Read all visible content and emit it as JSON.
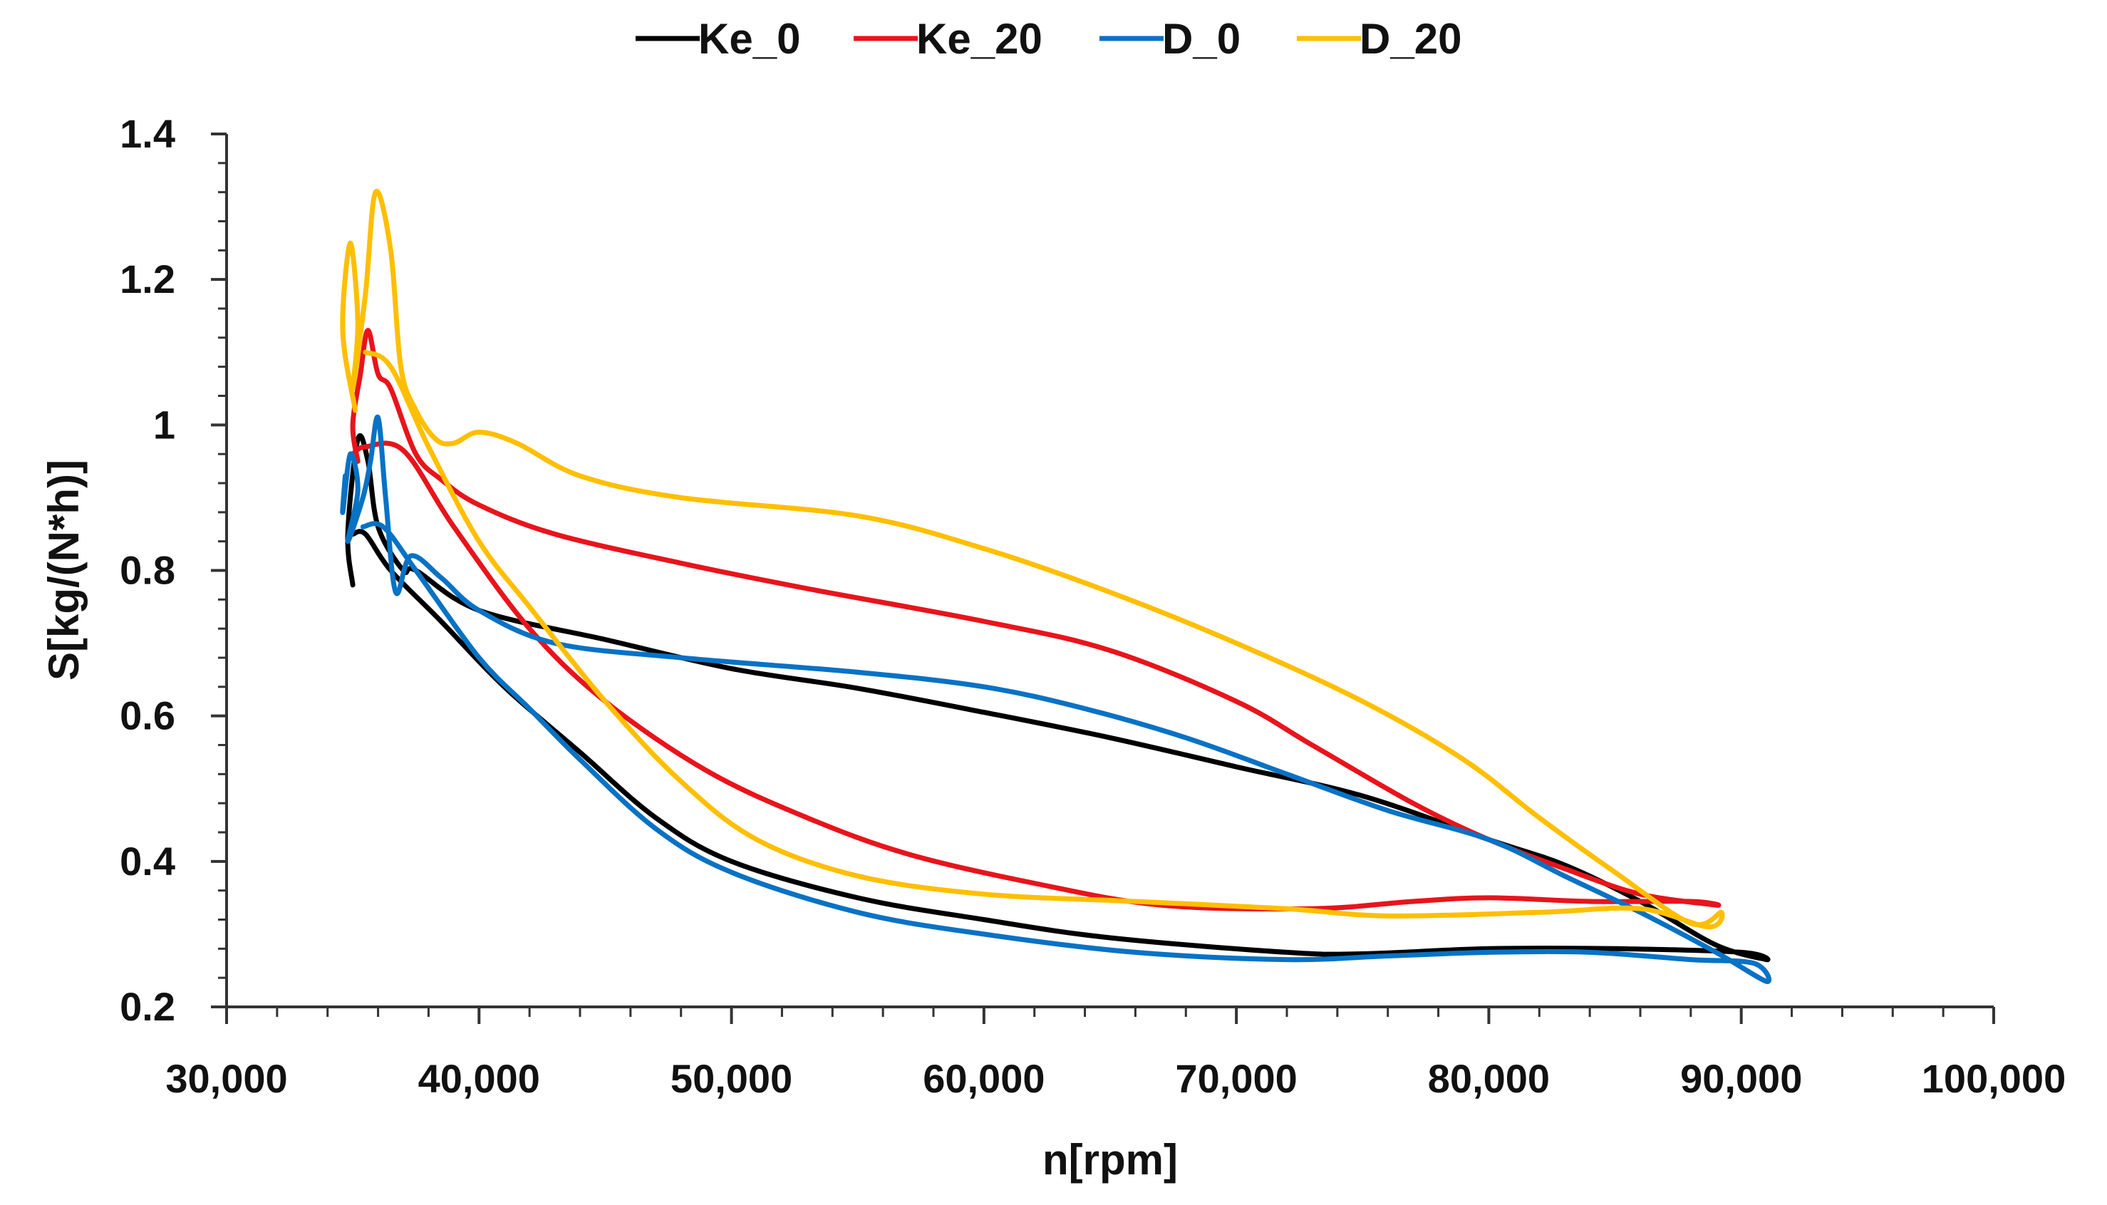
{
  "chart_data": {
    "type": "line",
    "title": "",
    "xlabel": "n[rpm]",
    "ylabel": "S[kg/(N*h)]",
    "xlim": [
      30000,
      100000
    ],
    "ylim": [
      0.2,
      1.4
    ],
    "xticks": [
      30000,
      40000,
      50000,
      60000,
      70000,
      80000,
      90000,
      100000
    ],
    "xtick_labels": [
      "30,000",
      "40,000",
      "50,000",
      "60,000",
      "70,000",
      "80,000",
      "90,000",
      "100,000"
    ],
    "yticks": [
      0.2,
      0.4,
      0.6,
      0.8,
      1.0,
      1.2,
      1.4
    ],
    "ytick_labels": [
      "0.2",
      "0.4",
      "0.6",
      "0.8",
      "1",
      "1.2",
      "1.4"
    ],
    "grid": false,
    "legend_position": "top-center",
    "series": [
      {
        "name": "Ke_0",
        "color": "#000000",
        "points": [
          [
            35000,
            0.78
          ],
          [
            34800,
            0.85
          ],
          [
            35200,
            0.98
          ],
          [
            35600,
            0.95
          ],
          [
            36000,
            0.86
          ],
          [
            37000,
            0.8
          ],
          [
            37500,
            0.8
          ],
          [
            40000,
            0.745
          ],
          [
            45000,
            0.705
          ],
          [
            50000,
            0.665
          ],
          [
            55000,
            0.638
          ],
          [
            60000,
            0.605
          ],
          [
            65000,
            0.57
          ],
          [
            70000,
            0.53
          ],
          [
            75000,
            0.49
          ],
          [
            80000,
            0.43
          ],
          [
            83000,
            0.395
          ],
          [
            86000,
            0.345
          ],
          [
            89000,
            0.285
          ],
          [
            91000,
            0.265
          ],
          [
            90000,
            0.275
          ],
          [
            85000,
            0.28
          ],
          [
            80000,
            0.28
          ],
          [
            75000,
            0.273
          ],
          [
            72000,
            0.275
          ],
          [
            65000,
            0.295
          ],
          [
            60000,
            0.32
          ],
          [
            55000,
            0.35
          ],
          [
            50000,
            0.4
          ],
          [
            47000,
            0.46
          ],
          [
            44000,
            0.55
          ],
          [
            41000,
            0.64
          ],
          [
            38500,
            0.73
          ],
          [
            36500,
            0.8
          ],
          [
            35500,
            0.85
          ],
          [
            35000,
            0.85
          ]
        ]
      },
      {
        "name": "Ke_20",
        "color": "#E8141C",
        "points": [
          [
            35200,
            0.95
          ],
          [
            35000,
            1.0
          ],
          [
            35300,
            1.07
          ],
          [
            35600,
            1.13
          ],
          [
            36000,
            1.07
          ],
          [
            36500,
            1.05
          ],
          [
            37500,
            0.96
          ],
          [
            38500,
            0.925
          ],
          [
            40000,
            0.89
          ],
          [
            43000,
            0.85
          ],
          [
            48000,
            0.81
          ],
          [
            53000,
            0.775
          ],
          [
            60000,
            0.73
          ],
          [
            65000,
            0.69
          ],
          [
            70000,
            0.62
          ],
          [
            73000,
            0.56
          ],
          [
            77000,
            0.48
          ],
          [
            80000,
            0.43
          ],
          [
            83000,
            0.39
          ],
          [
            86000,
            0.355
          ],
          [
            89000,
            0.34
          ],
          [
            88000,
            0.345
          ],
          [
            84000,
            0.345
          ],
          [
            80000,
            0.35
          ],
          [
            77000,
            0.345
          ],
          [
            73000,
            0.335
          ],
          [
            67000,
            0.34
          ],
          [
            62000,
            0.37
          ],
          [
            57000,
            0.41
          ],
          [
            53000,
            0.46
          ],
          [
            49000,
            0.525
          ],
          [
            45000,
            0.62
          ],
          [
            42000,
            0.72
          ],
          [
            39000,
            0.86
          ],
          [
            37000,
            0.965
          ],
          [
            35500,
            0.97
          ],
          [
            35000,
            0.96
          ]
        ]
      },
      {
        "name": "D_0",
        "color": "#0872C4",
        "points": [
          [
            34700,
            0.93
          ],
          [
            34600,
            0.88
          ],
          [
            34900,
            0.96
          ],
          [
            35200,
            0.91
          ],
          [
            34800,
            0.84
          ],
          [
            35400,
            0.9
          ],
          [
            35700,
            0.95
          ],
          [
            36000,
            1.01
          ],
          [
            36300,
            0.9
          ],
          [
            36700,
            0.77
          ],
          [
            37300,
            0.82
          ],
          [
            38500,
            0.79
          ],
          [
            40000,
            0.745
          ],
          [
            43000,
            0.7
          ],
          [
            48000,
            0.68
          ],
          [
            55000,
            0.66
          ],
          [
            60000,
            0.64
          ],
          [
            64000,
            0.61
          ],
          [
            68000,
            0.57
          ],
          [
            72000,
            0.52
          ],
          [
            76000,
            0.47
          ],
          [
            80000,
            0.43
          ],
          [
            83000,
            0.38
          ],
          [
            86000,
            0.33
          ],
          [
            89000,
            0.275
          ],
          [
            91000,
            0.235
          ],
          [
            90500,
            0.26
          ],
          [
            88000,
            0.265
          ],
          [
            84000,
            0.275
          ],
          [
            80000,
            0.275
          ],
          [
            76000,
            0.27
          ],
          [
            72000,
            0.265
          ],
          [
            66000,
            0.275
          ],
          [
            60000,
            0.3
          ],
          [
            55000,
            0.33
          ],
          [
            50000,
            0.385
          ],
          [
            47000,
            0.445
          ],
          [
            44000,
            0.54
          ],
          [
            42000,
            0.61
          ],
          [
            40000,
            0.68
          ],
          [
            37500,
            0.8
          ],
          [
            36200,
            0.86
          ],
          [
            35400,
            0.86
          ]
        ]
      },
      {
        "name": "D_20",
        "color": "#FFBF00",
        "points": [
          [
            35100,
            1.02
          ],
          [
            34600,
            1.13
          ],
          [
            34900,
            1.25
          ],
          [
            35200,
            1.14
          ],
          [
            35000,
            1.05
          ],
          [
            35500,
            1.18
          ],
          [
            35900,
            1.32
          ],
          [
            36500,
            1.24
          ],
          [
            36900,
            1.08
          ],
          [
            37500,
            1.02
          ],
          [
            38300,
            0.98
          ],
          [
            39000,
            0.975
          ],
          [
            40000,
            0.99
          ],
          [
            41500,
            0.975
          ],
          [
            44000,
            0.93
          ],
          [
            48000,
            0.9
          ],
          [
            55000,
            0.875
          ],
          [
            60000,
            0.83
          ],
          [
            65000,
            0.77
          ],
          [
            70000,
            0.7
          ],
          [
            75000,
            0.62
          ],
          [
            79000,
            0.54
          ],
          [
            82000,
            0.46
          ],
          [
            85000,
            0.385
          ],
          [
            88000,
            0.315
          ],
          [
            89200,
            0.33
          ],
          [
            88700,
            0.31
          ],
          [
            86000,
            0.335
          ],
          [
            82000,
            0.33
          ],
          [
            76000,
            0.325
          ],
          [
            72000,
            0.335
          ],
          [
            66000,
            0.345
          ],
          [
            60000,
            0.355
          ],
          [
            55000,
            0.38
          ],
          [
            51000,
            0.43
          ],
          [
            48000,
            0.51
          ],
          [
            45000,
            0.62
          ],
          [
            42000,
            0.75
          ],
          [
            40000,
            0.84
          ],
          [
            38000,
            0.97
          ],
          [
            36500,
            1.08
          ],
          [
            35500,
            1.1
          ]
        ]
      }
    ]
  }
}
